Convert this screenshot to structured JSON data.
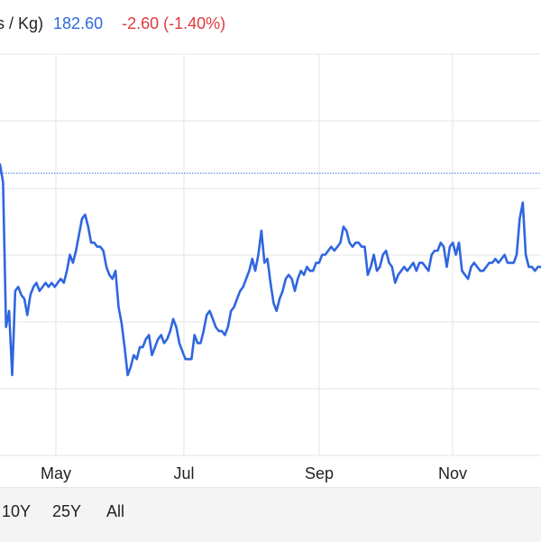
{
  "header": {
    "unit": "s / Kg)",
    "price": "182.60",
    "change": "-2.60 (-1.40%)"
  },
  "range_buttons": [
    "10Y",
    "25Y",
    "All"
  ],
  "colors": {
    "line": "#2f66e0",
    "reference_line": "#3a6ee6",
    "grid": "#e6e6e6",
    "price": "#2e6bdf",
    "change": "#e0393e"
  },
  "chart_data": {
    "type": "line",
    "x_tick_labels": [
      "May",
      "Jul",
      "Sep",
      "Nov"
    ],
    "reference_value": 0.703,
    "series": [
      {
        "values": [
          0.725,
          0.68,
          0.32,
          0.36,
          0.2,
          0.41,
          0.42,
          0.4,
          0.39,
          0.35,
          0.4,
          0.42,
          0.43,
          0.41,
          0.42,
          0.43,
          0.42,
          0.43,
          0.42,
          0.43,
          0.44,
          0.43,
          0.46,
          0.5,
          0.48,
          0.51,
          0.55,
          0.59,
          0.6,
          0.57,
          0.53,
          0.53,
          0.52,
          0.52,
          0.51,
          0.47,
          0.45,
          0.44,
          0.46,
          0.37,
          0.33,
          0.27,
          0.2,
          0.22,
          0.25,
          0.24,
          0.27,
          0.27,
          0.29,
          0.3,
          0.25,
          0.27,
          0.29,
          0.3,
          0.28,
          0.29,
          0.31,
          0.34,
          0.32,
          0.28,
          0.26,
          0.24,
          0.24,
          0.24,
          0.3,
          0.28,
          0.28,
          0.31,
          0.35,
          0.36,
          0.34,
          0.32,
          0.31,
          0.31,
          0.3,
          0.32,
          0.36,
          0.37,
          0.39,
          0.41,
          0.42,
          0.44,
          0.46,
          0.49,
          0.46,
          0.5,
          0.56,
          0.48,
          0.49,
          0.43,
          0.38,
          0.36,
          0.39,
          0.41,
          0.44,
          0.45,
          0.44,
          0.41,
          0.44,
          0.46,
          0.45,
          0.47,
          0.46,
          0.46,
          0.48,
          0.48,
          0.5,
          0.5,
          0.51,
          0.52,
          0.51,
          0.52,
          0.53,
          0.57,
          0.56,
          0.53,
          0.52,
          0.53,
          0.53,
          0.52,
          0.52,
          0.45,
          0.47,
          0.5,
          0.46,
          0.47,
          0.5,
          0.51,
          0.48,
          0.47,
          0.43,
          0.45,
          0.46,
          0.47,
          0.46,
          0.47,
          0.48,
          0.46,
          0.48,
          0.48,
          0.47,
          0.46,
          0.5,
          0.51,
          0.51,
          0.53,
          0.52,
          0.47,
          0.52,
          0.53,
          0.5,
          0.53,
          0.46,
          0.45,
          0.44,
          0.47,
          0.48,
          0.47,
          0.46,
          0.46,
          0.47,
          0.48,
          0.48,
          0.49,
          0.48,
          0.49,
          0.5,
          0.48,
          0.48,
          0.48,
          0.5,
          0.59,
          0.63,
          0.5,
          0.47,
          0.47,
          0.46,
          0.47,
          0.47
        ]
      }
    ]
  }
}
